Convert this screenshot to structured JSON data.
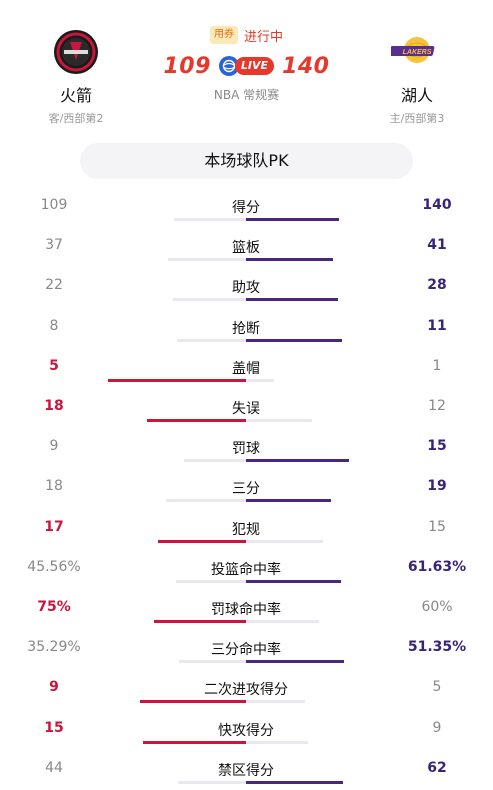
{
  "away": {
    "name": "火箭",
    "sub": "客/西部第2",
    "score": "109",
    "logo": "rockets-logo"
  },
  "home": {
    "name": "湖人",
    "sub": "主/西部第3",
    "score": "140",
    "logo": "lakers-logo"
  },
  "status": {
    "coupon": "用券",
    "text": "进行中",
    "live": "LIVE"
  },
  "league": "NBA 常规赛",
  "pk_title": "本场球队PK",
  "colors": {
    "away_win": "#c8163c",
    "home_win": "#4a2680",
    "track": "#e8e8ee"
  },
  "stats": [
    {
      "label": "得分",
      "left": "109",
      "right": "140",
      "l": 109,
      "r": 140,
      "win": "right"
    },
    {
      "label": "篮板",
      "left": "37",
      "right": "41",
      "l": 37,
      "r": 41,
      "win": "right"
    },
    {
      "label": "助攻",
      "left": "22",
      "right": "28",
      "l": 22,
      "r": 28,
      "win": "right"
    },
    {
      "label": "抢断",
      "left": "8",
      "right": "11",
      "l": 8,
      "r": 11,
      "win": "right"
    },
    {
      "label": "盖帽",
      "left": "5",
      "right": "1",
      "l": 5,
      "r": 1,
      "win": "left"
    },
    {
      "label": "失误",
      "left": "18",
      "right": "12",
      "l": 18,
      "r": 12,
      "win": "left"
    },
    {
      "label": "罚球",
      "left": "9",
      "right": "15",
      "l": 9,
      "r": 15,
      "win": "right"
    },
    {
      "label": "三分",
      "left": "18",
      "right": "19",
      "l": 18,
      "r": 19,
      "win": "right"
    },
    {
      "label": "犯规",
      "left": "17",
      "right": "15",
      "l": 17,
      "r": 15,
      "win": "left"
    },
    {
      "label": "投篮命中率",
      "left": "45.56%",
      "right": "61.63%",
      "l": 45.56,
      "r": 61.63,
      "win": "right"
    },
    {
      "label": "罚球命中率",
      "left": "75%",
      "right": "60%",
      "l": 75,
      "r": 60,
      "win": "left"
    },
    {
      "label": "三分命中率",
      "left": "35.29%",
      "right": "51.35%",
      "l": 35.29,
      "r": 51.35,
      "win": "right"
    },
    {
      "label": "二次进攻得分",
      "left": "9",
      "right": "5",
      "l": 9,
      "r": 5,
      "win": "left"
    },
    {
      "label": "快攻得分",
      "left": "15",
      "right": "9",
      "l": 15,
      "r": 9,
      "win": "left"
    },
    {
      "label": "禁区得分",
      "left": "44",
      "right": "62",
      "l": 44,
      "r": 62,
      "win": "right"
    }
  ]
}
